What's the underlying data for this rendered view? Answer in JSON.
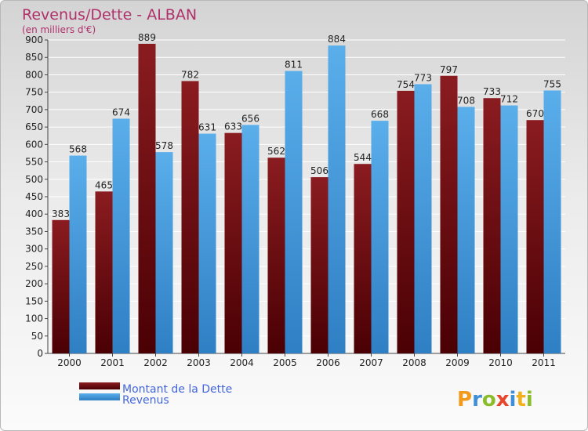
{
  "chart_data": {
    "type": "bar",
    "title": "Revenus/Dette - ALBAN",
    "subtitle": "(en milliers d'€)",
    "categories": [
      "2000",
      "2001",
      "2002",
      "2003",
      "2004",
      "2005",
      "2006",
      "2007",
      "2008",
      "2009",
      "2010",
      "2011"
    ],
    "series": [
      {
        "name": "Montant de la Dette",
        "color": "#7a1418",
        "values": [
          383,
          465,
          889,
          782,
          633,
          562,
          506,
          544,
          754,
          797,
          733,
          670
        ]
      },
      {
        "name": "Revenus",
        "color": "#4a9fe0",
        "values": [
          568,
          674,
          578,
          631,
          656,
          811,
          884,
          668,
          773,
          708,
          712,
          755
        ]
      }
    ],
    "ylim": [
      0,
      900
    ],
    "yticks": [
      0,
      50,
      100,
      150,
      200,
      250,
      300,
      350,
      400,
      450,
      500,
      550,
      600,
      650,
      700,
      750,
      800,
      850,
      900
    ],
    "grid": true,
    "legend_position": "bottom-left"
  },
  "logo": {
    "text": "Proxiti"
  }
}
